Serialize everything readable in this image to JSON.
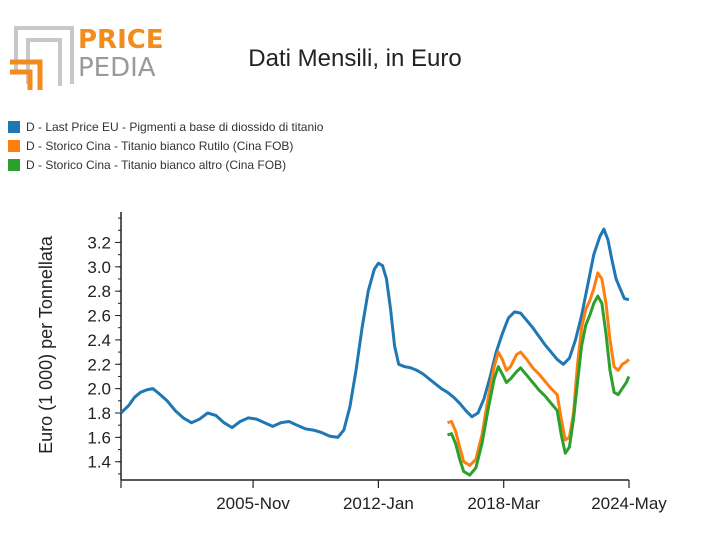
{
  "logo": {
    "line1": "PRICE",
    "line2": "PEDIA",
    "colors": {
      "orange": "#f28c1c",
      "grey": "#bdbdbd"
    }
  },
  "chart_data": {
    "type": "line",
    "title": "Dati Mensili, in Euro",
    "ylabel": "Euro (1 000) per Tonnellata",
    "xlabel": "",
    "ylim": [
      1.25,
      3.45
    ],
    "xlim": [
      1999.333,
      2024.333
    ],
    "yticks": [
      1.4,
      1.6,
      1.8,
      2.0,
      2.2,
      2.4,
      2.6,
      2.8,
      3.0,
      3.2
    ],
    "ytick_labels": [
      "1.4",
      "1.6",
      "1.8",
      "2.0",
      "2.2",
      "2.4",
      "2.6",
      "2.8",
      "3.0",
      "3.2"
    ],
    "xticks": [
      {
        "x": 1999.333,
        "label": ""
      },
      {
        "x": 2005.833,
        "label": "2005-Nov"
      },
      {
        "x": 2012.0,
        "label": "2012-Jan"
      },
      {
        "x": 2018.167,
        "label": "2018-Mar"
      },
      {
        "x": 2024.333,
        "label": "2024-May"
      }
    ],
    "grid": false,
    "legend_position": "top-left",
    "series": [
      {
        "name": "D - Last Price EU - Pigmenti a base di diossido di titanio",
        "color": "#1f77b4",
        "points": [
          [
            1999.33,
            1.8
          ],
          [
            1999.7,
            1.86
          ],
          [
            2000.0,
            1.93
          ],
          [
            2000.3,
            1.97
          ],
          [
            2000.6,
            1.99
          ],
          [
            2000.9,
            2.0
          ],
          [
            2001.2,
            1.96
          ],
          [
            2001.6,
            1.9
          ],
          [
            2002.0,
            1.82
          ],
          [
            2002.4,
            1.76
          ],
          [
            2002.8,
            1.72
          ],
          [
            2003.2,
            1.75
          ],
          [
            2003.6,
            1.8
          ],
          [
            2004.0,
            1.78
          ],
          [
            2004.4,
            1.72
          ],
          [
            2004.8,
            1.68
          ],
          [
            2005.2,
            1.73
          ],
          [
            2005.6,
            1.76
          ],
          [
            2006.0,
            1.75
          ],
          [
            2006.4,
            1.72
          ],
          [
            2006.8,
            1.69
          ],
          [
            2007.2,
            1.72
          ],
          [
            2007.6,
            1.73
          ],
          [
            2008.0,
            1.7
          ],
          [
            2008.4,
            1.67
          ],
          [
            2008.8,
            1.66
          ],
          [
            2009.2,
            1.64
          ],
          [
            2009.6,
            1.61
          ],
          [
            2010.0,
            1.6
          ],
          [
            2010.3,
            1.66
          ],
          [
            2010.6,
            1.85
          ],
          [
            2010.9,
            2.15
          ],
          [
            2011.2,
            2.5
          ],
          [
            2011.5,
            2.8
          ],
          [
            2011.8,
            2.98
          ],
          [
            2012.0,
            3.03
          ],
          [
            2012.2,
            3.01
          ],
          [
            2012.4,
            2.9
          ],
          [
            2012.6,
            2.65
          ],
          [
            2012.8,
            2.35
          ],
          [
            2013.0,
            2.2
          ],
          [
            2013.3,
            2.18
          ],
          [
            2013.6,
            2.17
          ],
          [
            2013.9,
            2.15
          ],
          [
            2014.2,
            2.12
          ],
          [
            2014.5,
            2.08
          ],
          [
            2014.8,
            2.04
          ],
          [
            2015.1,
            2.0
          ],
          [
            2015.4,
            1.97
          ],
          [
            2015.7,
            1.93
          ],
          [
            2016.0,
            1.88
          ],
          [
            2016.3,
            1.82
          ],
          [
            2016.6,
            1.77
          ],
          [
            2016.9,
            1.8
          ],
          [
            2017.2,
            1.92
          ],
          [
            2017.5,
            2.1
          ],
          [
            2017.8,
            2.3
          ],
          [
            2018.1,
            2.45
          ],
          [
            2018.4,
            2.58
          ],
          [
            2018.7,
            2.63
          ],
          [
            2019.0,
            2.62
          ],
          [
            2019.3,
            2.56
          ],
          [
            2019.6,
            2.5
          ],
          [
            2019.9,
            2.43
          ],
          [
            2020.2,
            2.36
          ],
          [
            2020.5,
            2.3
          ],
          [
            2020.8,
            2.24
          ],
          [
            2021.1,
            2.2
          ],
          [
            2021.4,
            2.25
          ],
          [
            2021.7,
            2.4
          ],
          [
            2022.0,
            2.6
          ],
          [
            2022.3,
            2.85
          ],
          [
            2022.6,
            3.1
          ],
          [
            2022.9,
            3.25
          ],
          [
            2023.1,
            3.31
          ],
          [
            2023.3,
            3.22
          ],
          [
            2023.5,
            3.05
          ],
          [
            2023.7,
            2.9
          ],
          [
            2023.9,
            2.82
          ],
          [
            2024.1,
            2.74
          ],
          [
            2024.33,
            2.73
          ]
        ]
      },
      {
        "name": "D - Storico Cina - Titanio bianco Rutilo (Cina FOB)",
        "color": "#ff7f0e",
        "points": [
          [
            2015.4,
            1.72
          ],
          [
            2015.6,
            1.73
          ],
          [
            2015.8,
            1.65
          ],
          [
            2016.0,
            1.52
          ],
          [
            2016.2,
            1.4
          ],
          [
            2016.5,
            1.37
          ],
          [
            2016.8,
            1.42
          ],
          [
            2017.1,
            1.62
          ],
          [
            2017.4,
            1.92
          ],
          [
            2017.7,
            2.18
          ],
          [
            2017.9,
            2.3
          ],
          [
            2018.1,
            2.24
          ],
          [
            2018.3,
            2.15
          ],
          [
            2018.5,
            2.18
          ],
          [
            2018.8,
            2.28
          ],
          [
            2019.0,
            2.3
          ],
          [
            2019.3,
            2.24
          ],
          [
            2019.6,
            2.17
          ],
          [
            2019.9,
            2.12
          ],
          [
            2020.2,
            2.06
          ],
          [
            2020.5,
            2.0
          ],
          [
            2020.8,
            1.95
          ],
          [
            2021.0,
            1.75
          ],
          [
            2021.2,
            1.58
          ],
          [
            2021.4,
            1.6
          ],
          [
            2021.6,
            1.8
          ],
          [
            2021.8,
            2.2
          ],
          [
            2022.0,
            2.5
          ],
          [
            2022.2,
            2.65
          ],
          [
            2022.4,
            2.72
          ],
          [
            2022.6,
            2.82
          ],
          [
            2022.8,
            2.95
          ],
          [
            2023.0,
            2.9
          ],
          [
            2023.2,
            2.7
          ],
          [
            2023.4,
            2.4
          ],
          [
            2023.6,
            2.18
          ],
          [
            2023.8,
            2.15
          ],
          [
            2024.0,
            2.2
          ],
          [
            2024.2,
            2.22
          ],
          [
            2024.33,
            2.24
          ]
        ]
      },
      {
        "name": "D - Storico Cina - Titanio bianco altro (Cina FOB)",
        "color": "#2ca02c",
        "points": [
          [
            2015.4,
            1.62
          ],
          [
            2015.6,
            1.63
          ],
          [
            2015.8,
            1.55
          ],
          [
            2016.0,
            1.42
          ],
          [
            2016.2,
            1.32
          ],
          [
            2016.5,
            1.29
          ],
          [
            2016.8,
            1.35
          ],
          [
            2017.1,
            1.55
          ],
          [
            2017.4,
            1.83
          ],
          [
            2017.7,
            2.08
          ],
          [
            2017.9,
            2.18
          ],
          [
            2018.1,
            2.12
          ],
          [
            2018.3,
            2.05
          ],
          [
            2018.5,
            2.08
          ],
          [
            2018.8,
            2.14
          ],
          [
            2019.0,
            2.17
          ],
          [
            2019.3,
            2.11
          ],
          [
            2019.6,
            2.05
          ],
          [
            2019.9,
            1.99
          ],
          [
            2020.2,
            1.94
          ],
          [
            2020.5,
            1.88
          ],
          [
            2020.8,
            1.82
          ],
          [
            2021.0,
            1.62
          ],
          [
            2021.2,
            1.47
          ],
          [
            2021.4,
            1.52
          ],
          [
            2021.6,
            1.75
          ],
          [
            2021.8,
            2.05
          ],
          [
            2022.0,
            2.35
          ],
          [
            2022.2,
            2.52
          ],
          [
            2022.4,
            2.6
          ],
          [
            2022.6,
            2.7
          ],
          [
            2022.8,
            2.76
          ],
          [
            2023.0,
            2.7
          ],
          [
            2023.2,
            2.45
          ],
          [
            2023.4,
            2.15
          ],
          [
            2023.6,
            1.97
          ],
          [
            2023.8,
            1.95
          ],
          [
            2024.0,
            2.0
          ],
          [
            2024.2,
            2.05
          ],
          [
            2024.33,
            2.1
          ]
        ]
      }
    ]
  }
}
